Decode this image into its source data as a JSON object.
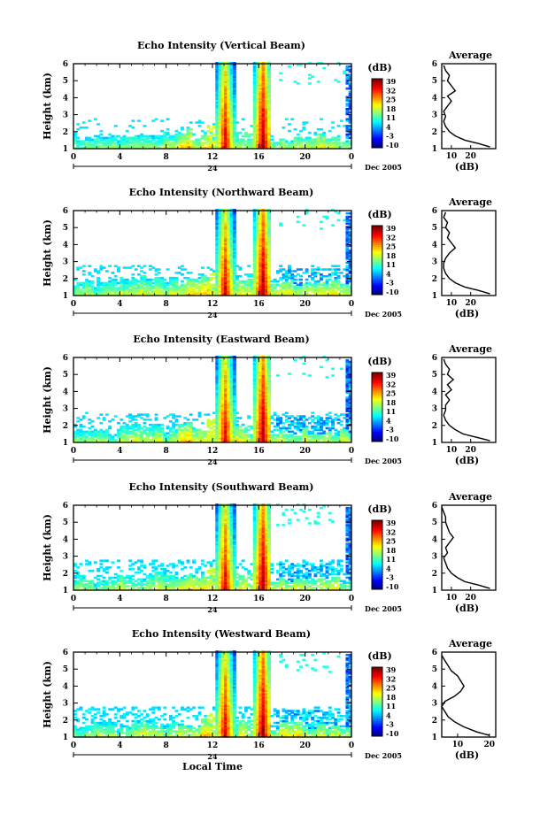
{
  "chart_data": [
    {
      "type": "heatmap",
      "title": "Echo Intensity (Vertical Beam)",
      "ylabel": "Height (km)",
      "x_ticks": [
        "0",
        "4",
        "8",
        "12",
        "16",
        "20",
        "0"
      ],
      "y_ticks": [
        "1",
        "2",
        "3",
        "4",
        "5",
        "6"
      ],
      "date_label": "24",
      "month_label": "Dec 2005",
      "colorbar": {
        "unit": "(dB)",
        "ticks": [
          "39",
          "32",
          "25",
          "18",
          "11",
          "4",
          "-3",
          "-10"
        ],
        "range": [
          -10,
          39
        ]
      },
      "profile": {
        "title": "Average",
        "xlabel": "(dB)",
        "x_ticks": [
          "10",
          "20"
        ],
        "xlim": [
          5,
          33
        ],
        "points": [
          [
            30,
            1.1
          ],
          [
            24,
            1.3
          ],
          [
            17,
            1.5
          ],
          [
            12,
            1.75
          ],
          [
            9,
            2.0
          ],
          [
            7,
            2.3
          ],
          [
            6,
            2.6
          ],
          [
            7,
            2.9
          ],
          [
            6,
            3.2
          ],
          [
            8,
            3.5
          ],
          [
            10,
            3.8
          ],
          [
            8,
            4.1
          ],
          [
            12,
            4.4
          ],
          [
            10,
            4.7
          ],
          [
            8,
            5.0
          ],
          [
            9,
            5.3
          ],
          [
            7,
            5.6
          ],
          [
            6,
            5.9
          ]
        ]
      }
    },
    {
      "type": "heatmap",
      "title": "Echo Intensity (Northward Beam)",
      "ylabel": "Height (km)",
      "x_ticks": [
        "0",
        "4",
        "8",
        "12",
        "16",
        "20",
        "0"
      ],
      "y_ticks": [
        "1",
        "2",
        "3",
        "4",
        "5",
        "6"
      ],
      "date_label": "24",
      "month_label": "Dec 2005",
      "colorbar": {
        "unit": "(dB)",
        "ticks": [
          "39",
          "32",
          "25",
          "18",
          "11",
          "4",
          "-3",
          "-10"
        ],
        "range": [
          -10,
          39
        ]
      },
      "profile": {
        "title": "Average",
        "xlabel": "(dB)",
        "x_ticks": [
          "10",
          "20"
        ],
        "xlim": [
          5,
          33
        ],
        "points": [
          [
            30,
            1.1
          ],
          [
            24,
            1.3
          ],
          [
            17,
            1.5
          ],
          [
            12,
            1.75
          ],
          [
            9,
            2.0
          ],
          [
            7,
            2.3
          ],
          [
            6,
            2.6
          ],
          [
            6,
            2.9
          ],
          [
            7,
            3.2
          ],
          [
            9,
            3.5
          ],
          [
            12,
            3.8
          ],
          [
            10,
            4.1
          ],
          [
            8,
            4.4
          ],
          [
            9,
            4.7
          ],
          [
            7,
            5.0
          ],
          [
            8,
            5.3
          ],
          [
            6,
            5.6
          ],
          [
            7,
            5.9
          ]
        ]
      }
    },
    {
      "type": "heatmap",
      "title": "Echo Intensity (Eastward Beam)",
      "ylabel": "Height (km)",
      "x_ticks": [
        "0",
        "4",
        "8",
        "12",
        "16",
        "20",
        "0"
      ],
      "y_ticks": [
        "1",
        "2",
        "3",
        "4",
        "5",
        "6"
      ],
      "date_label": "24",
      "month_label": "Dec 2005",
      "colorbar": {
        "unit": "(dB)",
        "ticks": [
          "39",
          "32",
          "25",
          "18",
          "11",
          "4",
          "-3",
          "-10"
        ],
        "range": [
          -10,
          39
        ]
      },
      "profile": {
        "title": "Average",
        "xlabel": "(dB)",
        "x_ticks": [
          "10",
          "20"
        ],
        "xlim": [
          5,
          33
        ],
        "points": [
          [
            30,
            1.1
          ],
          [
            23,
            1.3
          ],
          [
            16,
            1.5
          ],
          [
            12,
            1.75
          ],
          [
            9,
            2.0
          ],
          [
            7,
            2.3
          ],
          [
            6,
            2.6
          ],
          [
            7,
            2.9
          ],
          [
            7,
            3.2
          ],
          [
            9,
            3.5
          ],
          [
            7,
            3.8
          ],
          [
            10,
            4.1
          ],
          [
            8,
            4.4
          ],
          [
            11,
            4.7
          ],
          [
            8,
            5.0
          ],
          [
            9,
            5.3
          ],
          [
            7,
            5.6
          ],
          [
            6,
            5.9
          ]
        ]
      }
    },
    {
      "type": "heatmap",
      "title": "Echo Intensity (Southward Beam)",
      "ylabel": "Height (km)",
      "x_ticks": [
        "0",
        "4",
        "8",
        "12",
        "16",
        "20",
        "0"
      ],
      "y_ticks": [
        "1",
        "2",
        "3",
        "4",
        "5",
        "6"
      ],
      "date_label": "24",
      "month_label": "Dec 2005",
      "colorbar": {
        "unit": "(dB)",
        "ticks": [
          "39",
          "32",
          "25",
          "18",
          "11",
          "4",
          "-3",
          "-10"
        ],
        "range": [
          -10,
          39
        ]
      },
      "profile": {
        "title": "Average",
        "xlabel": "(dB)",
        "x_ticks": [
          "10",
          "20"
        ],
        "xlim": [
          5,
          33
        ],
        "points": [
          [
            30,
            1.1
          ],
          [
            24,
            1.3
          ],
          [
            17,
            1.5
          ],
          [
            13,
            1.75
          ],
          [
            10,
            2.0
          ],
          [
            8,
            2.3
          ],
          [
            7,
            2.6
          ],
          [
            6,
            2.9
          ],
          [
            8,
            3.2
          ],
          [
            7,
            3.5
          ],
          [
            9,
            3.8
          ],
          [
            11,
            4.1
          ],
          [
            9,
            4.4
          ],
          [
            8,
            4.7
          ],
          [
            7,
            5.0
          ],
          [
            7,
            5.3
          ],
          [
            6,
            5.6
          ],
          [
            5,
            5.9
          ]
        ]
      }
    },
    {
      "type": "heatmap",
      "title": "Echo Intensity (Westward Beam)",
      "ylabel": "Height (km)",
      "x_ticks": [
        "0",
        "4",
        "8",
        "12",
        "16",
        "20",
        "0"
      ],
      "y_ticks": [
        "1",
        "2",
        "3",
        "4",
        "5",
        "6"
      ],
      "date_label": "24",
      "month_label": "Dec 2005",
      "xlabel": "Local Time",
      "colorbar": {
        "unit": "(dB)",
        "ticks": [
          "39",
          "32",
          "25",
          "18",
          "11",
          "4",
          "-3",
          "-10"
        ],
        "range": [
          -10,
          39
        ]
      },
      "profile": {
        "title": "Average",
        "xlabel": "(dB)",
        "x_ticks": [
          "10",
          "20"
        ],
        "xlim": [
          5,
          22
        ],
        "points": [
          [
            20,
            1.1
          ],
          [
            16,
            1.3
          ],
          [
            12,
            1.6
          ],
          [
            9,
            1.9
          ],
          [
            7,
            2.2
          ],
          [
            6,
            2.5
          ],
          [
            5,
            2.8
          ],
          [
            6,
            3.1
          ],
          [
            9,
            3.4
          ],
          [
            11,
            3.7
          ],
          [
            12,
            4.0
          ],
          [
            11,
            4.3
          ],
          [
            10,
            4.6
          ],
          [
            8,
            4.9
          ],
          [
            7,
            5.2
          ],
          [
            6,
            5.5
          ],
          [
            5,
            5.8
          ]
        ]
      }
    }
  ]
}
